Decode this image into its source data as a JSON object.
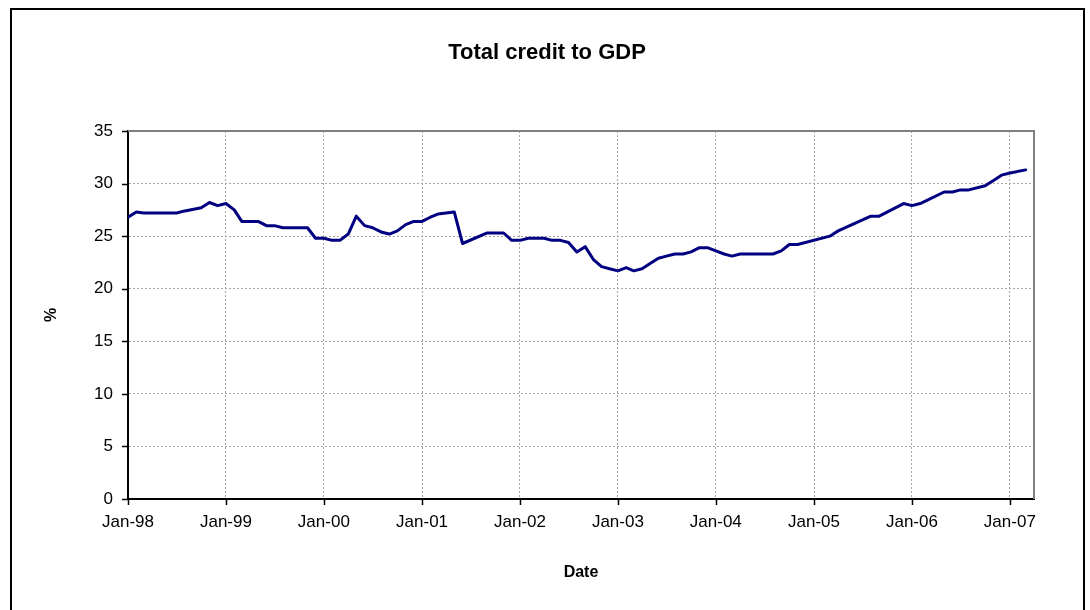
{
  "chart_data": {
    "type": "line",
    "title": "Total credit to GDP",
    "xlabel": "Date",
    "ylabel": "%",
    "x": [
      "1998-01",
      "1998-02",
      "1998-03",
      "1998-07",
      "1998-08",
      "1998-10",
      "1998-11",
      "1998-12",
      "1999-01",
      "1999-02",
      "1999-03",
      "1999-05",
      "1999-06",
      "1999-07",
      "1999-08",
      "1999-11",
      "1999-12",
      "2000-01",
      "2000-02",
      "2000-03",
      "2000-04",
      "2000-05",
      "2000-06",
      "2000-07",
      "2000-08",
      "2000-09",
      "2000-10",
      "2000-11",
      "2000-12",
      "2001-01",
      "2001-02",
      "2001-03",
      "2001-05",
      "2001-06",
      "2001-09",
      "2001-11",
      "2001-12",
      "2002-01",
      "2002-02",
      "2002-04",
      "2002-05",
      "2002-06",
      "2002-07",
      "2002-08",
      "2002-09",
      "2002-10",
      "2002-11",
      "2002-12",
      "2003-01",
      "2003-02",
      "2003-03",
      "2003-04",
      "2003-05",
      "2003-06",
      "2003-07",
      "2003-08",
      "2003-09",
      "2003-10",
      "2003-11",
      "2003-12",
      "2004-01",
      "2004-02",
      "2004-03",
      "2004-04",
      "2004-08",
      "2004-09",
      "2004-10",
      "2004-11",
      "2005-03",
      "2005-04",
      "2005-08",
      "2005-09",
      "2005-12",
      "2006-01",
      "2006-02",
      "2006-05",
      "2006-06",
      "2006-07",
      "2006-08",
      "2006-10",
      "2006-11",
      "2006-12",
      "2007-01",
      "2007-03"
    ],
    "values": [
      26.8,
      27.3,
      27.2,
      27.2,
      27.4,
      27.7,
      28.2,
      27.9,
      28.1,
      27.5,
      26.4,
      26.4,
      26.0,
      26.0,
      25.8,
      25.8,
      24.8,
      24.8,
      24.6,
      24.6,
      25.2,
      26.9,
      26.0,
      25.8,
      25.4,
      25.2,
      25.5,
      26.1,
      26.4,
      26.4,
      26.8,
      27.1,
      27.3,
      24.3,
      25.3,
      25.3,
      24.6,
      24.6,
      24.8,
      24.8,
      24.6,
      24.6,
      24.4,
      23.5,
      24.0,
      22.8,
      22.1,
      21.9,
      21.7,
      22.0,
      21.7,
      21.9,
      22.4,
      22.9,
      23.1,
      23.3,
      23.3,
      23.5,
      23.9,
      23.9,
      23.6,
      23.3,
      23.1,
      23.3,
      23.3,
      23.6,
      24.2,
      24.2,
      25.0,
      25.5,
      26.9,
      26.9,
      28.1,
      27.9,
      28.1,
      29.2,
      29.2,
      29.4,
      29.4,
      29.8,
      30.3,
      30.8,
      31.0,
      31.3
    ],
    "color": "#000080",
    "marker": "none",
    "xlim": [
      "1998-01",
      "2007-04"
    ],
    "xticks": [
      {
        "value": "1998-01",
        "label": "Jan-98"
      },
      {
        "value": "1999-01",
        "label": "Jan-99"
      },
      {
        "value": "2000-01",
        "label": "Jan-00"
      },
      {
        "value": "2001-01",
        "label": "Jan-01"
      },
      {
        "value": "2002-01",
        "label": "Jan-02"
      },
      {
        "value": "2003-01",
        "label": "Jan-03"
      },
      {
        "value": "2004-01",
        "label": "Jan-04"
      },
      {
        "value": "2005-01",
        "label": "Jan-05"
      },
      {
        "value": "2006-01",
        "label": "Jan-06"
      },
      {
        "value": "2007-01",
        "label": "Jan-07"
      }
    ],
    "ylim": [
      0,
      35
    ],
    "yticks": [
      0,
      5,
      10,
      15,
      20,
      25,
      30,
      35
    ],
    "grid": true
  }
}
